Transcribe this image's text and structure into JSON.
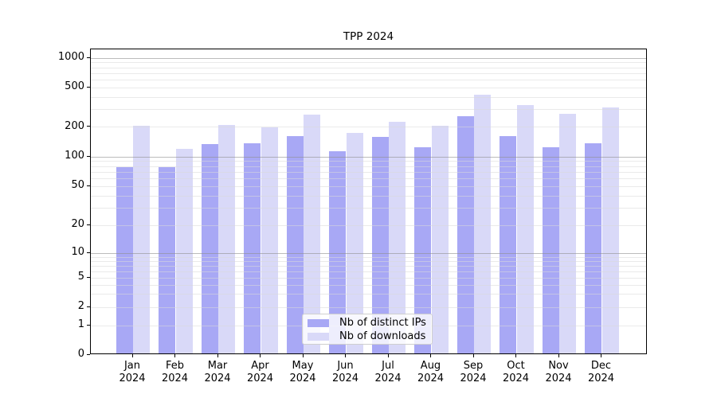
{
  "title": "TPP 2024",
  "chart_data": {
    "type": "bar",
    "title": "TPP 2024",
    "categories": [
      "Jan",
      "Feb",
      "Mar",
      "Apr",
      "May",
      "Jun",
      "Jul",
      "Aug",
      "Sep",
      "Oct",
      "Nov",
      "Dec"
    ],
    "x_tick_year": "2024",
    "series": [
      {
        "name": "Nb of distinct IPs",
        "color": "#a8a8f5",
        "values": [
          75,
          75,
          130,
          131,
          157,
          109,
          152,
          120,
          248,
          157,
          120,
          131
        ]
      },
      {
        "name": "Nb of downloads",
        "color": "#d9d9f8",
        "values": [
          197,
          116,
          203,
          192,
          257,
          168,
          216,
          199,
          408,
          323,
          263,
          302
        ]
      }
    ],
    "y_ticks": [
      0,
      1,
      2,
      5,
      10,
      20,
      50,
      100,
      200,
      500,
      1000
    ],
    "y_scale": "symlog",
    "ylim": [
      0,
      1200
    ],
    "grid": "horizontal, log major and minor lines",
    "legend_position": "lower center",
    "xlabel": "",
    "ylabel": ""
  }
}
